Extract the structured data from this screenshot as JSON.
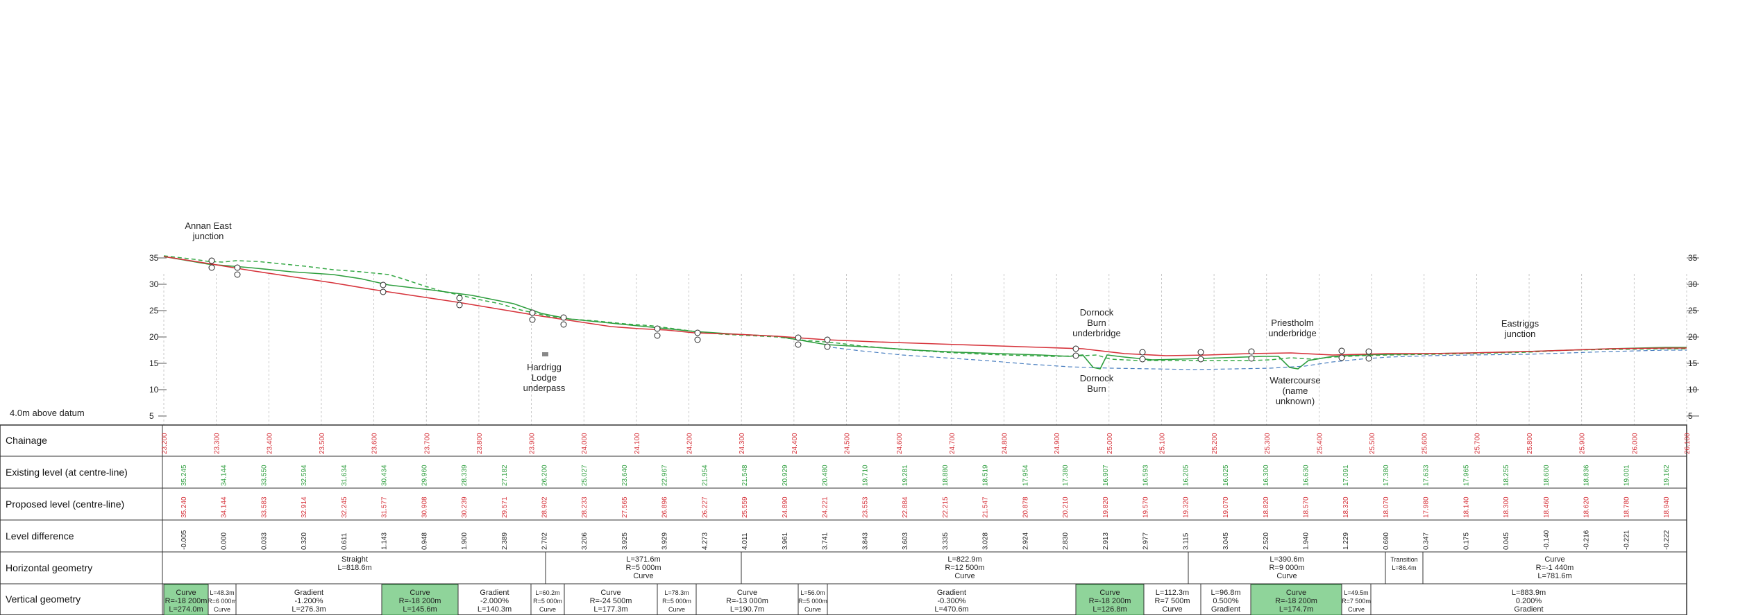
{
  "axis": {
    "left_ticks": [
      "35",
      "30",
      "25",
      "20",
      "15",
      "10",
      "5"
    ],
    "right_ticks": [
      "35",
      "30",
      "25",
      "20",
      "15",
      "10",
      "5"
    ]
  },
  "datum_label": "4.0m above datum",
  "annotations": {
    "annan_east": "Annan East junction",
    "hardrigg": "Hardrigg Lodge underpass",
    "dornock_bridge": "Dornock Burn underbridge",
    "dornock_burn": "Dornock Burn",
    "priestholm": "Priestholm underbridge",
    "watercourse": "Watercourse (name unknown)",
    "eastriggs": "Eastriggs junction"
  },
  "row_labels": {
    "chainage": "Chainage",
    "existing": "Existing level (at centre-line)",
    "proposed": "Proposed level (centre-line)",
    "difference": "Level difference",
    "horizontal": "Horizontal geometry",
    "vertical": "Vertical geometry"
  },
  "chainage_major": [
    "23.200",
    "23.300",
    "23.400",
    "23.500",
    "23.600",
    "23.700",
    "23.800",
    "23.900",
    "24.000",
    "24.100",
    "24.200",
    "24.300",
    "24.400",
    "24.500",
    "24.600",
    "24.700",
    "24.800",
    "24.900",
    "25.000",
    "25.100",
    "25.200",
    "25.300",
    "25.400",
    "25.500",
    "25.600",
    "25.700",
    "25.800",
    "25.900",
    "26.000",
    "26.100"
  ],
  "existing_levels": [
    "35.245",
    "34.144",
    "33.550",
    "32.594",
    "31.634",
    "30.434",
    "29.960",
    "28.339",
    "27.182",
    "26.200",
    "25.027",
    "23.640",
    "22.967",
    "21.954",
    "21.548",
    "20.929",
    "20.480",
    "19.710",
    "19.281",
    "18.880",
    "18.519",
    "17.954",
    "17.380",
    "16.907",
    "16.593",
    "16.205",
    "16.025",
    "16.300",
    "16.630",
    "17.091",
    "17.380",
    "17.633",
    "17.965",
    "18.255",
    "18.600",
    "18.836",
    "19.001",
    "19.162"
  ],
  "proposed_levels": [
    "35.240",
    "34.144",
    "33.583",
    "32.914",
    "32.245",
    "31.577",
    "30.908",
    "30.239",
    "29.571",
    "28.902",
    "28.233",
    "27.565",
    "26.896",
    "26.227",
    "25.559",
    "24.890",
    "24.221",
    "23.553",
    "22.884",
    "22.215",
    "21.547",
    "20.878",
    "20.210",
    "19.820",
    "19.570",
    "19.320",
    "19.070",
    "18.820",
    "18.570",
    "18.320",
    "18.070",
    "17.980",
    "18.140",
    "18.300",
    "18.460",
    "18.620",
    "18.780",
    "18.940"
  ],
  "level_differences": [
    "-0.005",
    "0.000",
    "0.033",
    "0.320",
    "0.611",
    "1.143",
    "0.948",
    "1.900",
    "2.389",
    "2.702",
    "3.206",
    "3.925",
    "3.929",
    "4.273",
    "4.011",
    "3.961",
    "3.741",
    "3.843",
    "3.603",
    "3.335",
    "3.028",
    "2.924",
    "2.830",
    "2.913",
    "2.977",
    "3.115",
    "3.045",
    "2.520",
    "1.940",
    "1.229",
    "0.690",
    "0.347",
    "0.175",
    "0.045",
    "-0.140",
    "-0.216",
    "-0.221",
    "-0.222"
  ],
  "horizontal_geometry": [
    {
      "t1": "Straight",
      "t2": "L=818.6m"
    },
    {
      "t1": "L=371.6m",
      "t2": "R=5 000m",
      "t3": "Curve"
    },
    {
      "t1": "L=822.9m",
      "t2": "R=12 500m",
      "t3": "Curve"
    },
    {
      "t1": "L=390.6m",
      "t2": "R=9 000m",
      "t3": "Curve"
    },
    {
      "t1": "Transition",
      "t2": "L=86.4m"
    },
    {
      "t1": "Curve",
      "t2": "R=-1 440m",
      "t3": "L=781.6m"
    }
  ],
  "vertical_geometry": [
    {
      "t1": "Curve",
      "t2": "R=-18 200m",
      "t3": "L=274.0m"
    },
    {
      "t1": "L=48.3m",
      "t2": "R=6 000m",
      "t3": "Curve"
    },
    {
      "t1": "Gradient",
      "t2": "-1.200%",
      "t3": "L=276.3m"
    },
    {
      "t1": "Curve",
      "t2": "R=-18 200m",
      "t3": "L=145.6m"
    },
    {
      "t1": "Gradient",
      "t2": "-2.000%",
      "t3": "L=140.3m"
    },
    {
      "t1": "L=60.2m",
      "t2": "R=5 000m",
      "t3": "Curve"
    },
    {
      "t1": "Curve",
      "t2": "R=-24 500m",
      "t3": "L=177.3m"
    },
    {
      "t1": "L=78.3m",
      "t2": "R=5 000m",
      "t3": "Curve"
    },
    {
      "t1": "Curve",
      "t2": "R=-13 000m",
      "t3": "L=190.7m"
    },
    {
      "t1": "L=56.0m",
      "t2": "R=5 000m",
      "t3": "Curve"
    },
    {
      "t1": "Gradient",
      "t2": "-0.300%",
      "t3": "L=470.6m"
    },
    {
      "t1": "Curve",
      "t2": "R=-18 200m",
      "t3": "L=126.8m"
    },
    {
      "t1": "L=112.3m",
      "t2": "R=7 500m",
      "t3": "Curve"
    },
    {
      "t1": "L=96.8m",
      "t2": "0.500%",
      "t3": "Gradient"
    },
    {
      "t1": "Curve",
      "t2": "R=-18 200m",
      "t3": "L=174.7m"
    },
    {
      "t1": "L=49.5m",
      "t2": "R=7 500m",
      "t3": "Curve"
    },
    {
      "t1": "L=883.9m",
      "t2": "0.200%",
      "t3": "Gradient"
    }
  ],
  "colors": {
    "existing": "#2e9e3e",
    "proposed": "#d6323a",
    "dashed_green": "#35a845",
    "dashed_blue": "#4a7fc0",
    "vcurve_fill": "#8fd49a"
  }
}
